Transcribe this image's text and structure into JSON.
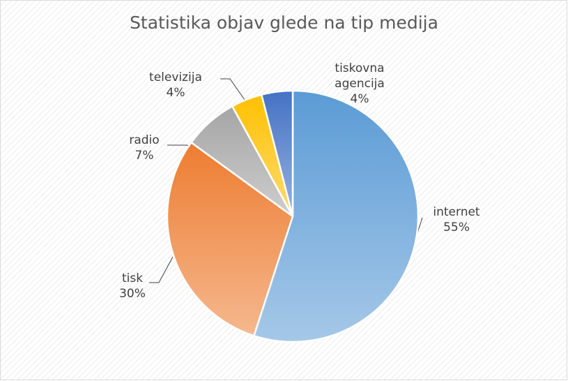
{
  "chart_data": {
    "type": "pie",
    "title": "Statistika objav glede na tip medija",
    "categories": [
      "internet",
      "tisk",
      "radio",
      "televizija",
      "tiskovna agencija"
    ],
    "values": [
      55,
      30,
      7,
      4,
      4
    ],
    "value_labels": [
      "55%",
      "30%",
      "7%",
      "4%",
      "4%"
    ],
    "colors": [
      "#5b9bd5",
      "#ed7d31",
      "#a5a5a5",
      "#ffc000",
      "#4472c4"
    ]
  }
}
